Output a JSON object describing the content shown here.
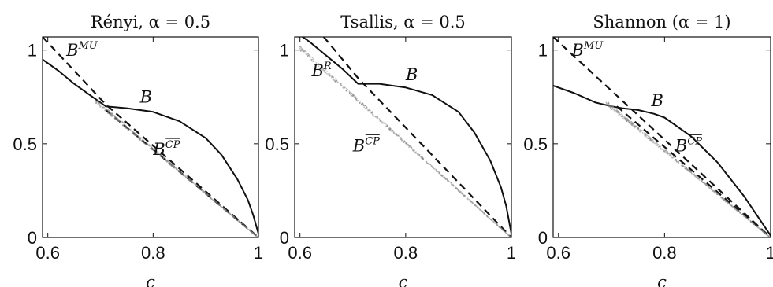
{
  "chart_data": [
    {
      "type": "line",
      "title": "Rényi, α = 0.5",
      "xlabel": "c",
      "xlim": [
        0.59,
        1.0
      ],
      "ylim": [
        0,
        1.07
      ],
      "xticks": [
        0.6,
        0.8,
        1
      ],
      "xtick_labels": [
        "0.6",
        "0.8",
        "1"
      ],
      "yticks": [
        0,
        0.5,
        1
      ],
      "ytick_labels": [
        "0",
        "0.5",
        "1"
      ],
      "grid": false,
      "series": [
        {
          "name": "B",
          "style": "solid",
          "x": [
            0.59,
            0.62,
            0.65,
            0.68,
            0.71,
            0.75,
            0.8,
            0.85,
            0.9,
            0.93,
            0.96,
            0.98,
            0.99,
            1.0
          ],
          "y": [
            0.95,
            0.89,
            0.82,
            0.76,
            0.7,
            0.69,
            0.67,
            0.62,
            0.53,
            0.44,
            0.31,
            0.2,
            0.12,
            0.02
          ]
        },
        {
          "name": "B^MU",
          "style": "dashed",
          "x": [
            0.59,
            0.71,
            1.0
          ],
          "y": [
            1.07,
            0.71,
            0.0
          ]
        },
        {
          "name": "B^CP",
          "style": "dashed",
          "x": [
            0.71,
            1.0
          ],
          "y": [
            0.68,
            0.0
          ]
        },
        {
          "name": "B^CP",
          "style": "scatter",
          "x": [
            0.69,
            1.0
          ],
          "y": [
            0.74,
            0.0
          ]
        }
      ],
      "annotations": [
        {
          "base": "B",
          "sup": "MU",
          "x": 0.635,
          "y": 0.97
        },
        {
          "base": "B",
          "sup": "",
          "x": 0.775,
          "y": 0.72
        },
        {
          "base": "B",
          "sup": "CP",
          "over": true,
          "x": 0.8,
          "y": 0.44
        }
      ]
    },
    {
      "type": "line",
      "title": "Tsallis, α = 0.5",
      "xlabel": "c",
      "xlim": [
        0.59,
        1.0
      ],
      "ylim": [
        0,
        1.07
      ],
      "xticks": [
        0.6,
        0.8,
        1
      ],
      "xtick_labels": [
        "0.6",
        "0.8",
        "1"
      ],
      "yticks": [
        0,
        0.5,
        1
      ],
      "ytick_labels": [
        "0",
        "0.5",
        "1"
      ],
      "grid": false,
      "series": [
        {
          "name": "B",
          "style": "solid",
          "x": [
            0.59,
            0.62,
            0.65,
            0.68,
            0.71,
            0.75,
            0.8,
            0.85,
            0.9,
            0.93,
            0.96,
            0.98,
            0.99,
            1.0
          ],
          "y": [
            1.1,
            1.04,
            0.97,
            0.9,
            0.82,
            0.82,
            0.8,
            0.76,
            0.67,
            0.56,
            0.41,
            0.27,
            0.17,
            0.02
          ]
        },
        {
          "name": "B^R",
          "style": "dashed",
          "x": [
            0.645,
            0.71,
            1.0
          ],
          "y": [
            1.07,
            0.85,
            0.0
          ]
        },
        {
          "name": "B^CP",
          "style": "scatter",
          "x": [
            0.6,
            1.0
          ],
          "y": [
            1.02,
            0.0
          ]
        }
      ],
      "annotations": [
        {
          "base": "B",
          "sup": "R",
          "x": 0.622,
          "y": 0.86
        },
        {
          "base": "B",
          "sup": "",
          "x": 0.8,
          "y": 0.84
        },
        {
          "base": "B",
          "sup": "CP",
          "over": true,
          "x": 0.7,
          "y": 0.46
        }
      ]
    },
    {
      "type": "line",
      "title": "Shannon (α = 1)",
      "xlabel": "c",
      "xlim": [
        0.59,
        1.0
      ],
      "ylim": [
        0,
        1.07
      ],
      "xticks": [
        0.6,
        0.8,
        1
      ],
      "xtick_labels": [
        "0.6",
        "0.8",
        "1"
      ],
      "yticks": [
        0,
        0.5,
        1
      ],
      "ytick_labels": [
        "0",
        "0.5",
        "1"
      ],
      "grid": false,
      "series": [
        {
          "name": "B",
          "style": "solid",
          "x": [
            0.59,
            0.63,
            0.67,
            0.7,
            0.72,
            0.75,
            0.78,
            0.8,
            0.85,
            0.9,
            0.95,
            1.0
          ],
          "y": [
            0.81,
            0.77,
            0.72,
            0.7,
            0.69,
            0.68,
            0.66,
            0.64,
            0.54,
            0.4,
            0.22,
            0.01
          ]
        },
        {
          "name": "B^MU",
          "style": "dashed",
          "x": [
            0.59,
            1.0
          ],
          "y": [
            1.07,
            0.0
          ]
        },
        {
          "name": "B^CP",
          "style": "dashed",
          "x": [
            0.71,
            1.0
          ],
          "y": [
            0.7,
            0.0
          ]
        },
        {
          "name": "B^CP",
          "style": "scatter",
          "x": [
            0.69,
            1.0
          ],
          "y": [
            0.73,
            0.0
          ]
        }
      ],
      "annotations": [
        {
          "base": "B",
          "sup": "MU",
          "x": 0.625,
          "y": 0.97
        },
        {
          "base": "B",
          "sup": "",
          "x": 0.775,
          "y": 0.7
        },
        {
          "base": "B",
          "sup": "CP",
          "over": true,
          "x": 0.82,
          "y": 0.46
        }
      ]
    }
  ]
}
